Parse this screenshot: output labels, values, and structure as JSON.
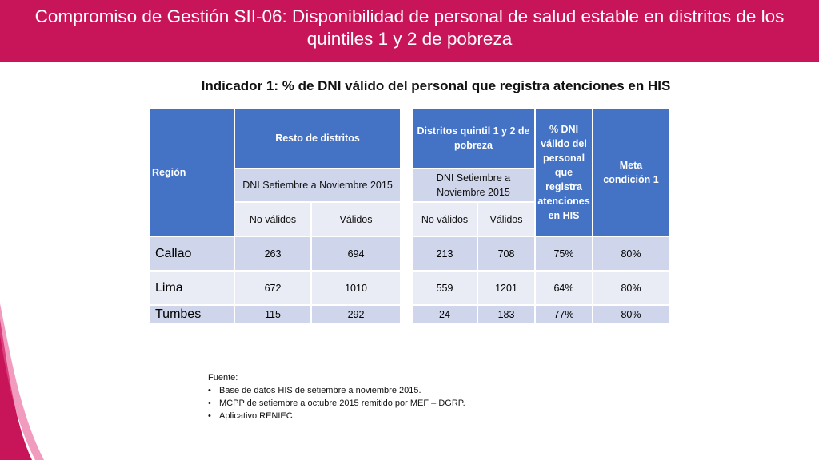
{
  "header": {
    "title_line1": "Compromiso de Gestión SII-06: Disponibilidad de personal de salud estable en distritos de los",
    "title_line2": "quintiles 1 y 2 de pobreza"
  },
  "subtitle": "Indicador 1: % de DNI válido del personal que registra atenciones en HIS",
  "table": {
    "region_header": "Región",
    "group1_header": "Resto de distritos",
    "group1_sub": "DNI Setiembre a Noviembre 2015",
    "group2_header": "Distritos quintil 1 y 2 de pobreza",
    "group2_sub": "DNI Setiembre a Noviembre 2015",
    "col_no_validos": "No válidos",
    "col_validos": "Válidos",
    "pct_header": "% DNI válido del personal que registra atenciones en HIS",
    "meta_header": "Meta condición 1",
    "rows": [
      {
        "region": "Callao",
        "r_no": "263",
        "r_si": "694",
        "q_no": "213",
        "q_si": "708",
        "pct": "75%",
        "meta": "80%"
      },
      {
        "region": "Lima",
        "r_no": "672",
        "r_si": "1010",
        "q_no": "559",
        "q_si": "1201",
        "pct": "64%",
        "meta": "80%"
      },
      {
        "region": "Tumbes",
        "r_no": "115",
        "r_si": "292",
        "q_no": "24",
        "q_si": "183",
        "pct": "77%",
        "meta": "80%"
      }
    ]
  },
  "source": {
    "label": "Fuente:",
    "items": [
      "Base de datos HIS de setiembre a noviembre 2015.",
      "MCPP de setiembre a octubre 2015 remitido por MEF – DGRP.",
      "Aplicativo RENIEC"
    ]
  },
  "colors": {
    "header_bg": "#c8155a",
    "table_header": "#4472c4",
    "row_light": "#e9ebf5",
    "row_mid": "#cfd5ea"
  }
}
